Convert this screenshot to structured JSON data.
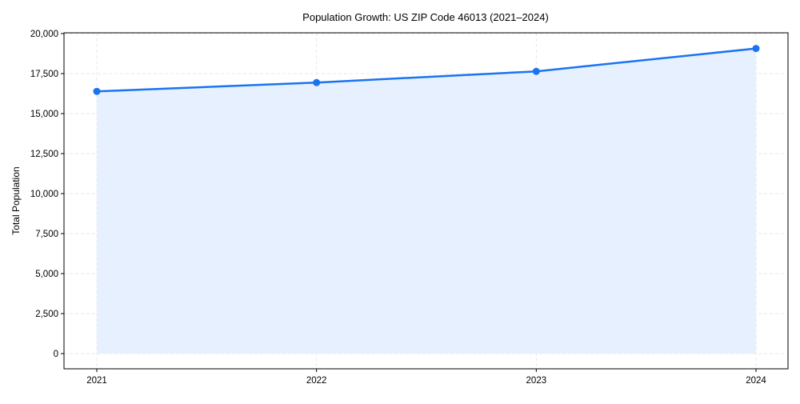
{
  "chart_data": {
    "type": "area",
    "title": "Population Growth: US ZIP Code 46013 (2021–2024)",
    "xlabel": "",
    "ylabel": "Total Population",
    "categories": [
      "2021",
      "2022",
      "2023",
      "2024"
    ],
    "series": [
      {
        "name": "Total Population",
        "values": [
          16390,
          16940,
          17640,
          19070
        ],
        "color": "#1a73f0",
        "fill": "#e6f0fe"
      }
    ],
    "ylim": [
      -1000,
      20000
    ],
    "yticks": [
      0,
      2500,
      5000,
      7500,
      10000,
      12500,
      15000,
      17500,
      20000
    ],
    "ytick_labels": [
      "0",
      "2,500",
      "5,000",
      "7,500",
      "10,000",
      "12,500",
      "15,000",
      "17,500",
      "20,000"
    ],
    "grid": true,
    "legend": "none"
  }
}
